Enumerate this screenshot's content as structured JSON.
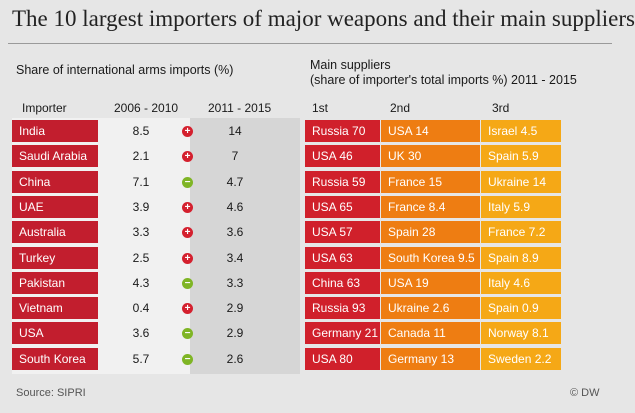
{
  "title": "The 10 largest importers of major weapons and their main suppliers",
  "left_heading": "Share of international arms imports (%)",
  "right_heading_line1": "Main suppliers",
  "right_heading_line2": "(share of importer's total imports %) 2011 - 2015",
  "columns": {
    "importer": "Importer",
    "period1": "2006 - 2010",
    "period2": "2011 - 2015",
    "first": "1st",
    "second": "2nd",
    "third": "3rd"
  },
  "change_symbols": {
    "up": "+",
    "down": "−"
  },
  "colors": {
    "importer": "#c21e2e",
    "first": "#d0202b",
    "second": "#ee7d12",
    "third": "#f5a816",
    "increase": "#d4202e",
    "decrease": "#7fb525"
  },
  "chart_data": {
    "type": "table",
    "rows": [
      {
        "importer": "India",
        "share_2006_2010": "8.5",
        "change": "up",
        "share_2011_2015": "14",
        "s1": "Russia 70",
        "s2": "USA 14",
        "s3": "Israel 4.5"
      },
      {
        "importer": "Saudi Arabia",
        "share_2006_2010": "2.1",
        "change": "up",
        "share_2011_2015": "7",
        "s1": "USA 46",
        "s2": "UK 30",
        "s3": "Spain 5.9"
      },
      {
        "importer": "China",
        "share_2006_2010": "7.1",
        "change": "down",
        "share_2011_2015": "4.7",
        "s1": "Russia 59",
        "s2": "France 15",
        "s3": "Ukraine 14"
      },
      {
        "importer": "UAE",
        "share_2006_2010": "3.9",
        "change": "up",
        "share_2011_2015": "4.6",
        "s1": "USA 65",
        "s2": "France 8.4",
        "s3": "Italy 5.9"
      },
      {
        "importer": "Australia",
        "share_2006_2010": "3.3",
        "change": "up",
        "share_2011_2015": "3.6",
        "s1": "USA 57",
        "s2": "Spain 28",
        "s3": "France 7.2"
      },
      {
        "importer": "Turkey",
        "share_2006_2010": "2.5",
        "change": "up",
        "share_2011_2015": "3.4",
        "s1": "USA 63",
        "s2": "South Korea 9.5",
        "s3": "Spain 8.9"
      },
      {
        "importer": "Pakistan",
        "share_2006_2010": "4.3",
        "change": "down",
        "share_2011_2015": "3.3",
        "s1": "China 63",
        "s2": "USA 19",
        "s3": "Italy 4.6"
      },
      {
        "importer": "Vietnam",
        "share_2006_2010": "0.4",
        "change": "up",
        "share_2011_2015": "2.9",
        "s1": "Russia 93",
        "s2": "Ukraine 2.6",
        "s3": "Spain 0.9"
      },
      {
        "importer": "USA",
        "share_2006_2010": "3.6",
        "change": "down",
        "share_2011_2015": "2.9",
        "s1": "Germany 21",
        "s2": "Canada 11",
        "s3": "Norway 8.1"
      },
      {
        "importer": "South Korea",
        "share_2006_2010": "5.7",
        "change": "down",
        "share_2011_2015": "2.6",
        "s1": "USA 80",
        "s2": "Germany 13",
        "s3": "Sweden 2.2"
      }
    ]
  },
  "source": "Source: SIPRI",
  "copyright": "© DW"
}
